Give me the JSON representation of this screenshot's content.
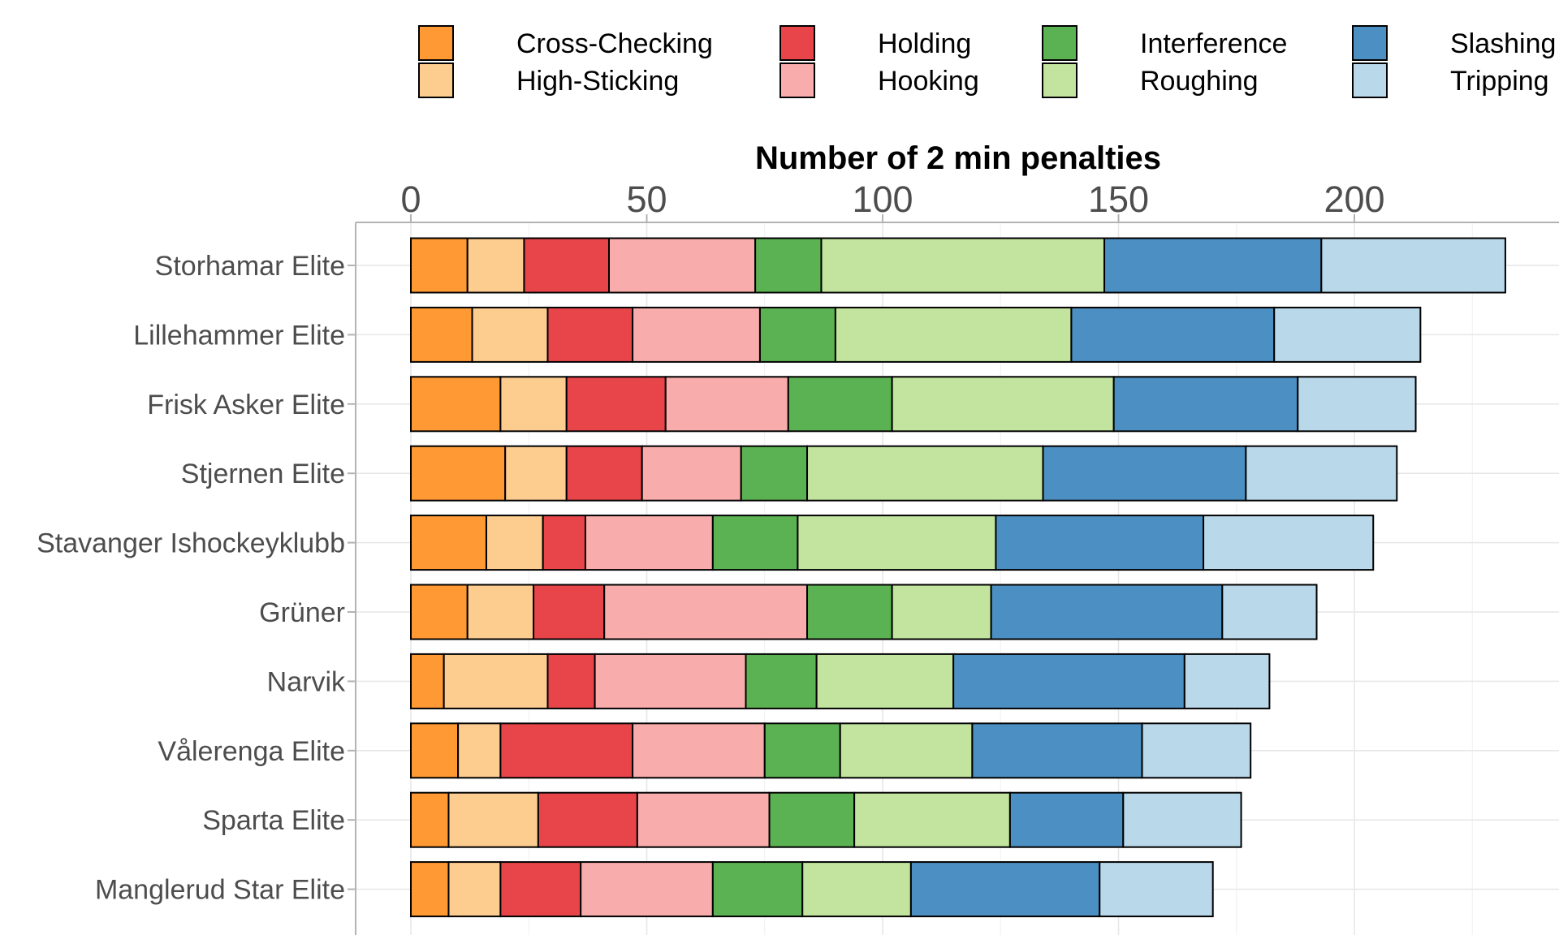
{
  "chart_data": {
    "type": "bar",
    "orientation": "horizontal",
    "stacked": true,
    "title": "",
    "xlabel": "Number of 2 min penalties",
    "ylabel": "",
    "xlim": [
      0,
      235
    ],
    "x_ticks": [
      0,
      50,
      100,
      150,
      200
    ],
    "x_axis_position": "top",
    "grid": true,
    "legend_position": "top",
    "categories": [
      "Storhamar Elite",
      "Lillehammer Elite",
      "Frisk Asker Elite",
      "Stjernen Elite",
      "Stavanger Ishockeyklubb",
      "Grüner",
      "Narvik",
      "Vålerenga Elite",
      "Sparta Elite",
      "Manglerud Star Elite"
    ],
    "series": [
      {
        "name": "Cross-Checking",
        "color": "#FF9933",
        "values": [
          12,
          13,
          19,
          20,
          16,
          12,
          7,
          10,
          8,
          8
        ]
      },
      {
        "name": "High-Sticking",
        "color": "#FDCC8F",
        "values": [
          12,
          16,
          14,
          13,
          12,
          14,
          22,
          9,
          19,
          11
        ]
      },
      {
        "name": "Holding",
        "color": "#E8454A",
        "values": [
          18,
          18,
          21,
          16,
          9,
          15,
          10,
          28,
          21,
          17
        ]
      },
      {
        "name": "Hooking",
        "color": "#F9ACAC",
        "values": [
          31,
          27,
          26,
          21,
          27,
          43,
          32,
          28,
          28,
          28
        ]
      },
      {
        "name": "Interference",
        "color": "#5BB252",
        "values": [
          14,
          16,
          22,
          14,
          18,
          18,
          15,
          16,
          18,
          19
        ]
      },
      {
        "name": "Roughing",
        "color": "#C2E49E",
        "values": [
          60,
          50,
          47,
          50,
          42,
          21,
          29,
          28,
          33,
          23
        ]
      },
      {
        "name": "Slashing",
        "color": "#4C8FC2",
        "values": [
          46,
          43,
          39,
          43,
          44,
          49,
          49,
          36,
          24,
          40
        ]
      },
      {
        "name": "Tripping",
        "color": "#B9D8EA",
        "values": [
          39,
          31,
          25,
          32,
          36,
          20,
          18,
          23,
          25,
          24
        ]
      }
    ]
  }
}
